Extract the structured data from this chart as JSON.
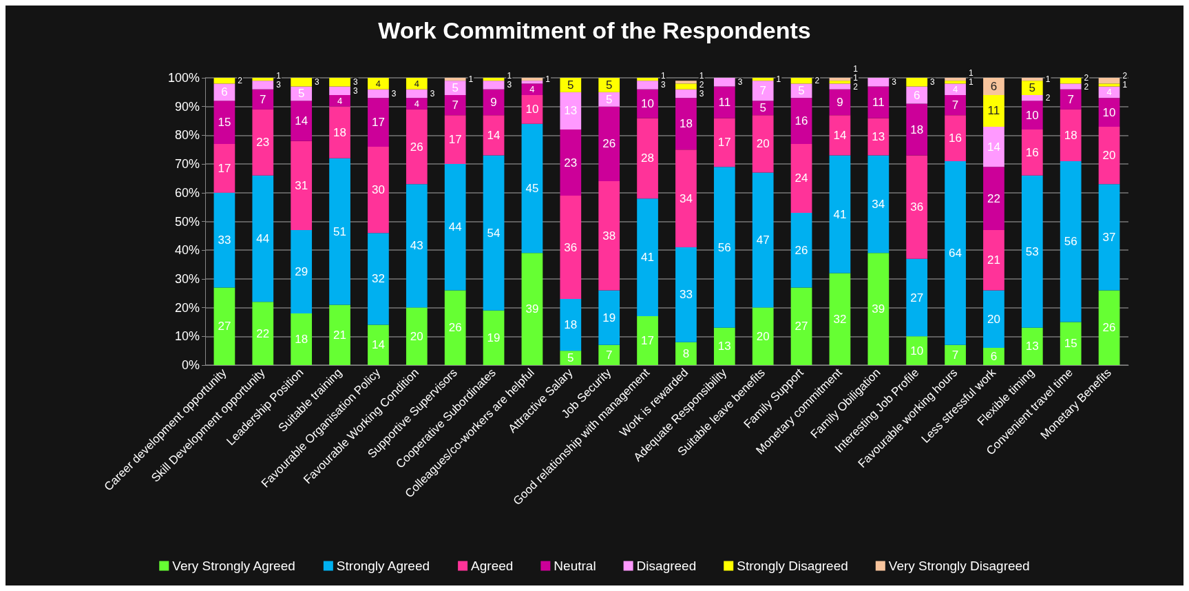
{
  "chart_data": {
    "type": "bar",
    "title": "Work Commitment of the Respondents",
    "stacked": true,
    "grid": "y",
    "legend": "bottom",
    "categories": [
      "Career development opportunity",
      "Skill Development opportunity",
      "Leadership Position",
      "Suitable training",
      "Favourable Organisation Policy",
      "Favourable Working Condition",
      "Supportive Supervisors",
      "Cooperative Subordinates",
      "Colleagues/co-workers are helpful",
      "Attractive Salary",
      "Job Security",
      "Good relationship with management",
      "Work is rewarded",
      "Adequate Responsibility",
      "Suitable leave benefits",
      "Family Support",
      "Monetary commitment",
      "Family Obiligation",
      "Interesting Job Profile",
      "Favourable working hours",
      "Less stressful work",
      "Flexible timing",
      "Convenient travel time",
      "Monetary Benefits"
    ],
    "ylim": [
      0,
      100
    ],
    "yticks": [
      {
        "value": 0,
        "label": "0%"
      },
      {
        "value": 10,
        "label": "10%"
      },
      {
        "value": 20,
        "label": "20%"
      },
      {
        "value": 30,
        "label": "30%"
      },
      {
        "value": 40,
        "label": "40%"
      },
      {
        "value": 50,
        "label": "50%"
      },
      {
        "value": 60,
        "label": "60%"
      },
      {
        "value": 70,
        "label": "70%"
      },
      {
        "value": 80,
        "label": "80%"
      },
      {
        "value": 90,
        "label": "90%"
      },
      {
        "value": 100,
        "label": "100%"
      }
    ],
    "series": [
      {
        "name": "Very Strongly Agreed",
        "color": "#66ff33",
        "values": [
          27,
          22,
          18,
          21,
          14,
          20,
          26,
          19,
          39,
          5,
          7,
          17,
          8,
          13,
          20,
          27,
          32,
          39,
          10,
          7,
          6,
          13,
          15,
          26
        ],
        "value_labels": [
          "27",
          "22",
          "18",
          "21",
          "14",
          "20",
          "26",
          "19",
          "39",
          "5",
          "7",
          "17",
          "8",
          "13",
          "20",
          "27",
          "32",
          "39",
          "10",
          "7",
          "6",
          "13",
          "15",
          "26"
        ]
      },
      {
        "name": "Strongly Agreed",
        "color": "#00b0f0",
        "values": [
          33,
          44,
          29,
          51,
          32,
          43,
          44,
          54,
          45,
          18,
          19,
          41,
          33,
          56,
          47,
          26,
          41,
          34,
          27,
          64,
          20,
          53,
          56,
          37
        ],
        "value_labels": [
          "33",
          "44",
          "29",
          "51",
          "32",
          "43",
          "44",
          "54",
          "45",
          "18",
          "19",
          "41",
          "33",
          "56",
          "47",
          "26",
          "41",
          "34",
          "27",
          "64",
          "20",
          "53",
          "56",
          "37"
        ]
      },
      {
        "name": "Agreed",
        "color": "#ff3399",
        "values": [
          17,
          23,
          31,
          18,
          30,
          26,
          17,
          14,
          10,
          36,
          38,
          28,
          34,
          17,
          20,
          24,
          14,
          13,
          36,
          16,
          21,
          16,
          18,
          20
        ],
        "value_labels": [
          "17",
          "23",
          "31",
          "18",
          "30",
          "26",
          "17",
          "14",
          "10",
          "36",
          "38",
          "28",
          "34",
          "17",
          "20",
          "24",
          "14",
          "13",
          "36",
          "16",
          "21",
          "16",
          "18",
          "20"
        ]
      },
      {
        "name": "Neutral",
        "color": "#cc0099",
        "values": [
          15,
          7,
          14,
          4,
          17,
          4,
          7,
          9,
          4,
          23,
          26,
          10,
          18,
          11,
          5,
          16,
          9,
          11,
          18,
          7,
          22,
          10,
          7,
          10
        ],
        "value_labels": [
          "15",
          "7",
          "14",
          "4",
          "17",
          "4",
          "7",
          "9",
          "4",
          "23",
          "26",
          "10",
          "18",
          "11",
          "5",
          "16",
          "9",
          "11",
          "18",
          "7",
          "22",
          "10",
          "7",
          "10"
        ]
      },
      {
        "name": "Disagreed",
        "color": "#ff99ff",
        "values": [
          6,
          3,
          5,
          3,
          3,
          3,
          5,
          3,
          1,
          13,
          5,
          3,
          3,
          3,
          7,
          5,
          2,
          3,
          6,
          4,
          14,
          2,
          2,
          4
        ],
        "value_labels": [
          "6",
          "3",
          "5",
          "3",
          "3",
          "3",
          "5",
          "3",
          null,
          "13",
          "5",
          "3",
          "3",
          "3",
          "7",
          "5",
          "2",
          "3",
          "6",
          "4",
          "14",
          "2",
          "2",
          "4"
        ]
      },
      {
        "name": "Strongly Disagreed",
        "color": "#ffff00",
        "values": [
          2,
          1,
          3,
          3,
          4,
          4,
          0,
          1,
          0,
          5,
          5,
          1,
          2,
          0,
          1,
          2,
          1,
          0,
          3,
          1,
          11,
          5,
          2,
          1
        ],
        "value_labels": [
          "2",
          "1",
          "3",
          "3",
          "4",
          "4",
          null,
          "1",
          null,
          "5",
          "5",
          "1",
          "2",
          null,
          "1",
          "2",
          "1",
          null,
          "3",
          "1",
          "11",
          "5",
          "2",
          "1"
        ]
      },
      {
        "name": "Very Strongly Disagreed",
        "color": "#f8c49c",
        "values": [
          0,
          0,
          0,
          0,
          0,
          0,
          1,
          0,
          1,
          0,
          0,
          0,
          1,
          0,
          0,
          0,
          1,
          0,
          0,
          1,
          6,
          1,
          0,
          2
        ],
        "value_labels": [
          null,
          null,
          null,
          null,
          null,
          null,
          "1",
          null,
          "1",
          null,
          null,
          null,
          "1",
          null,
          null,
          null,
          "1",
          null,
          null,
          "1",
          "6",
          "1",
          null,
          "2"
        ]
      }
    ]
  }
}
